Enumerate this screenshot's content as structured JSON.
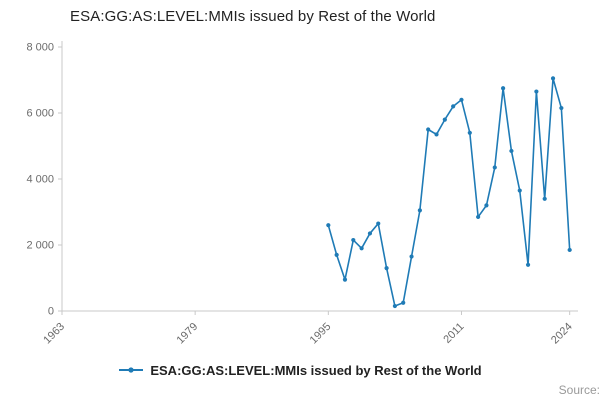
{
  "chart_data": {
    "type": "line",
    "title": "ESA:GG:AS:LEVEL:MMIs issued by Rest of the World",
    "series_name": "ESA:GG:AS:LEVEL:MMIs issued by Rest of the World",
    "x": [
      1995,
      1996,
      1997,
      1998,
      1999,
      2000,
      2001,
      2002,
      2003,
      2004,
      2005,
      2006,
      2007,
      2008,
      2009,
      2010,
      2011,
      2012,
      2013,
      2014,
      2015,
      2016,
      2017,
      2018,
      2019,
      2020,
      2021,
      2022,
      2023,
      2024
    ],
    "values": [
      2600,
      1700,
      950,
      2150,
      1900,
      2350,
      2650,
      1300,
      150,
      250,
      1650,
      3050,
      5500,
      5350,
      5800,
      6200,
      6400,
      5400,
      2850,
      3200,
      4350,
      6750,
      4850,
      3650,
      1400,
      6650,
      3400,
      7050,
      6150,
      1850
    ],
    "xlim": [
      1963,
      2025
    ],
    "ylim": [
      0,
      8000
    ],
    "xticks": [
      1963,
      1979,
      1995,
      2011,
      2024
    ],
    "yticks": [
      0,
      2000,
      4000,
      6000,
      8000
    ],
    "ytick_labels": [
      "0",
      "2 000",
      "4 000",
      "6 000",
      "8 000"
    ],
    "grid": false,
    "marker": "circle",
    "legend_position": "bottom"
  },
  "legend": {
    "label": "ESA:GG:AS:LEVEL:MMIs issued by Rest of the World"
  },
  "source": {
    "label": "Source:"
  },
  "colors": {
    "line": "#1f7bb6",
    "axis": "#c9c9c9",
    "tick_text": "#6b6b6b",
    "title_text": "#222222",
    "legend_text": "#222222",
    "source_text": "#999999"
  }
}
